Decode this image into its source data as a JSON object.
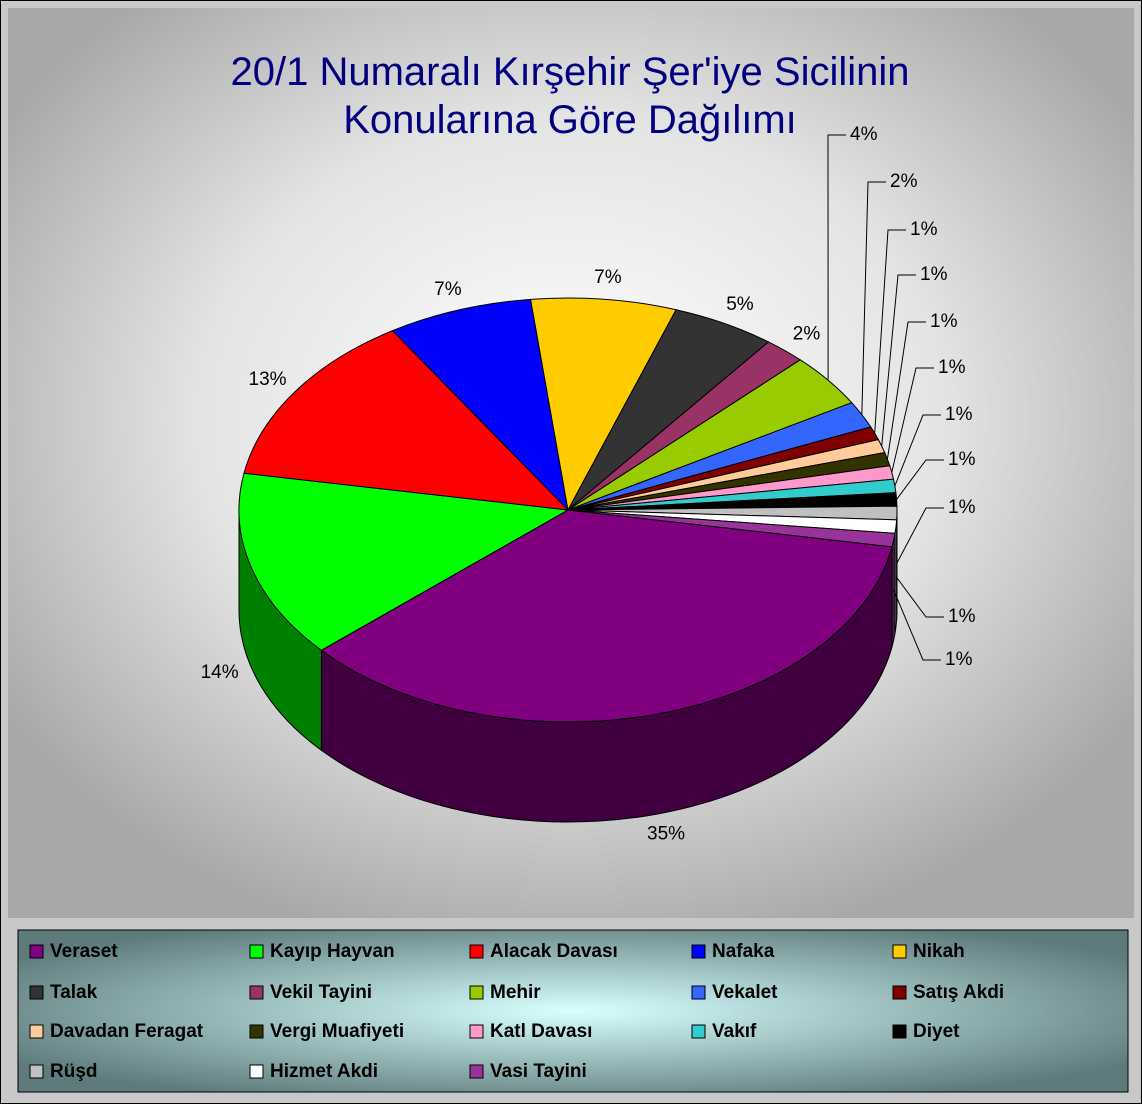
{
  "chart_data": {
    "type": "pie3d",
    "title": "20/1 Numaralı Kırşehir Şer'iye Sicilinin Konularına Göre Dağılımı",
    "categories": [
      "Veraset",
      "Kayıp Hayvan",
      "Alacak Davası",
      "Nafaka",
      "Nikah",
      "Talak",
      "Vekil Tayini",
      "Mehir",
      "Vekalet",
      "Satış Akdi",
      "Davadan Feragat",
      "Vergi Muafiyeti",
      "Katl Davası",
      "Vakıf",
      "Diyet",
      "Rüşd",
      "Hizmet Akdi",
      "Vasi Tayini"
    ],
    "values": [
      35,
      14,
      13,
      7,
      7,
      5,
      2,
      4,
      2,
      1,
      1,
      1,
      1,
      1,
      1,
      1,
      1,
      1
    ],
    "value_labels": [
      "35%",
      "14%",
      "13%",
      "7%",
      "7%",
      "5%",
      "2%",
      "4%",
      "2%",
      "1%",
      "1%",
      "1%",
      "1%",
      "1%",
      "1%",
      "1%",
      "1%",
      "1%"
    ],
    "colors": [
      "#800080",
      "#00ff00",
      "#ff0000",
      "#0000ff",
      "#ffcc00",
      "#333333",
      "#993366",
      "#99cc00",
      "#3366ff",
      "#800000",
      "#ffcc99",
      "#333300",
      "#ff99cc",
      "#33cccc",
      "#000000",
      "#c0c0c0",
      "#ffffff",
      "#993399"
    ],
    "legend": "bottom"
  }
}
